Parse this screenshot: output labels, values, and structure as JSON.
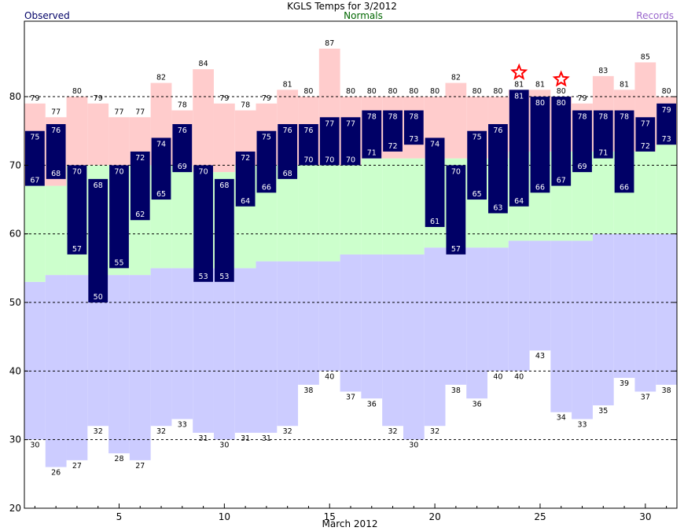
{
  "chart_data": {
    "type": "bar",
    "title": "KGLS Temps for 3/2012",
    "xlabel": "March 2012",
    "ylabel": "",
    "ylim": [
      20,
      91
    ],
    "xlim": [
      0.5,
      31.5
    ],
    "grid": true,
    "yticks": [
      20,
      30,
      40,
      50,
      60,
      70,
      80
    ],
    "xticks": [
      5,
      10,
      15,
      20,
      25,
      30
    ],
    "legend": [
      {
        "name": "Observed",
        "color": "#000066",
        "position": "top-left"
      },
      {
        "name": "Normals",
        "color": "#006600",
        "position": "top-center"
      },
      {
        "name": "Records",
        "color": "#9966cc",
        "position": "top-right"
      }
    ],
    "colors": {
      "observed": "#000066",
      "normal_band": "#ccffcc",
      "record_high": "#ffcccc",
      "record_low": "#ccccff",
      "record_star": "#ff0000"
    },
    "days": [
      1,
      2,
      3,
      4,
      5,
      6,
      7,
      8,
      9,
      10,
      11,
      12,
      13,
      14,
      15,
      16,
      17,
      18,
      19,
      20,
      21,
      22,
      23,
      24,
      25,
      26,
      27,
      28,
      29,
      30,
      31
    ],
    "series": [
      {
        "name": "Observed High",
        "values": [
          75,
          76,
          70,
          68,
          70,
          72,
          74,
          76,
          70,
          68,
          72,
          75,
          76,
          76,
          77,
          77,
          78,
          78,
          78,
          74,
          70,
          75,
          76,
          81,
          80,
          80,
          78,
          78,
          78,
          77,
          79
        ]
      },
      {
        "name": "Observed Low",
        "values": [
          67,
          68,
          57,
          50,
          55,
          62,
          65,
          69,
          53,
          53,
          64,
          66,
          68,
          70,
          70,
          70,
          71,
          72,
          73,
          61,
          57,
          65,
          63,
          64,
          66,
          67,
          69,
          71,
          66,
          72,
          73
        ]
      },
      {
        "name": "Record High",
        "values": [
          79,
          77,
          80,
          79,
          77,
          77,
          82,
          78,
          84,
          79,
          78,
          79,
          81,
          80,
          87,
          80,
          80,
          80,
          80,
          80,
          82,
          80,
          80,
          81,
          81,
          80,
          79,
          83,
          81,
          85,
          80
        ]
      },
      {
        "name": "Normal High",
        "values": [
          67,
          67,
          70,
          70,
          70,
          70,
          70,
          70,
          69,
          69,
          70,
          70,
          70,
          70,
          70,
          70,
          71,
          71,
          71,
          71,
          71,
          71,
          71,
          72,
          72,
          72,
          72,
          72,
          72,
          72,
          73
        ]
      },
      {
        "name": "Normal Low",
        "values": [
          53,
          54,
          54,
          54,
          54,
          54,
          55,
          55,
          55,
          55,
          55,
          56,
          56,
          56,
          56,
          57,
          57,
          57,
          57,
          58,
          58,
          58,
          58,
          59,
          59,
          59,
          59,
          60,
          60,
          60,
          60
        ]
      },
      {
        "name": "Record Low",
        "values": [
          30,
          26,
          27,
          32,
          28,
          27,
          32,
          33,
          31,
          30,
          31,
          31,
          32,
          38,
          40,
          37,
          36,
          32,
          30,
          32,
          38,
          36,
          40,
          40,
          43,
          34,
          33,
          35,
          39,
          37,
          38
        ]
      }
    ],
    "record_high_set": [
      24,
      26
    ]
  }
}
